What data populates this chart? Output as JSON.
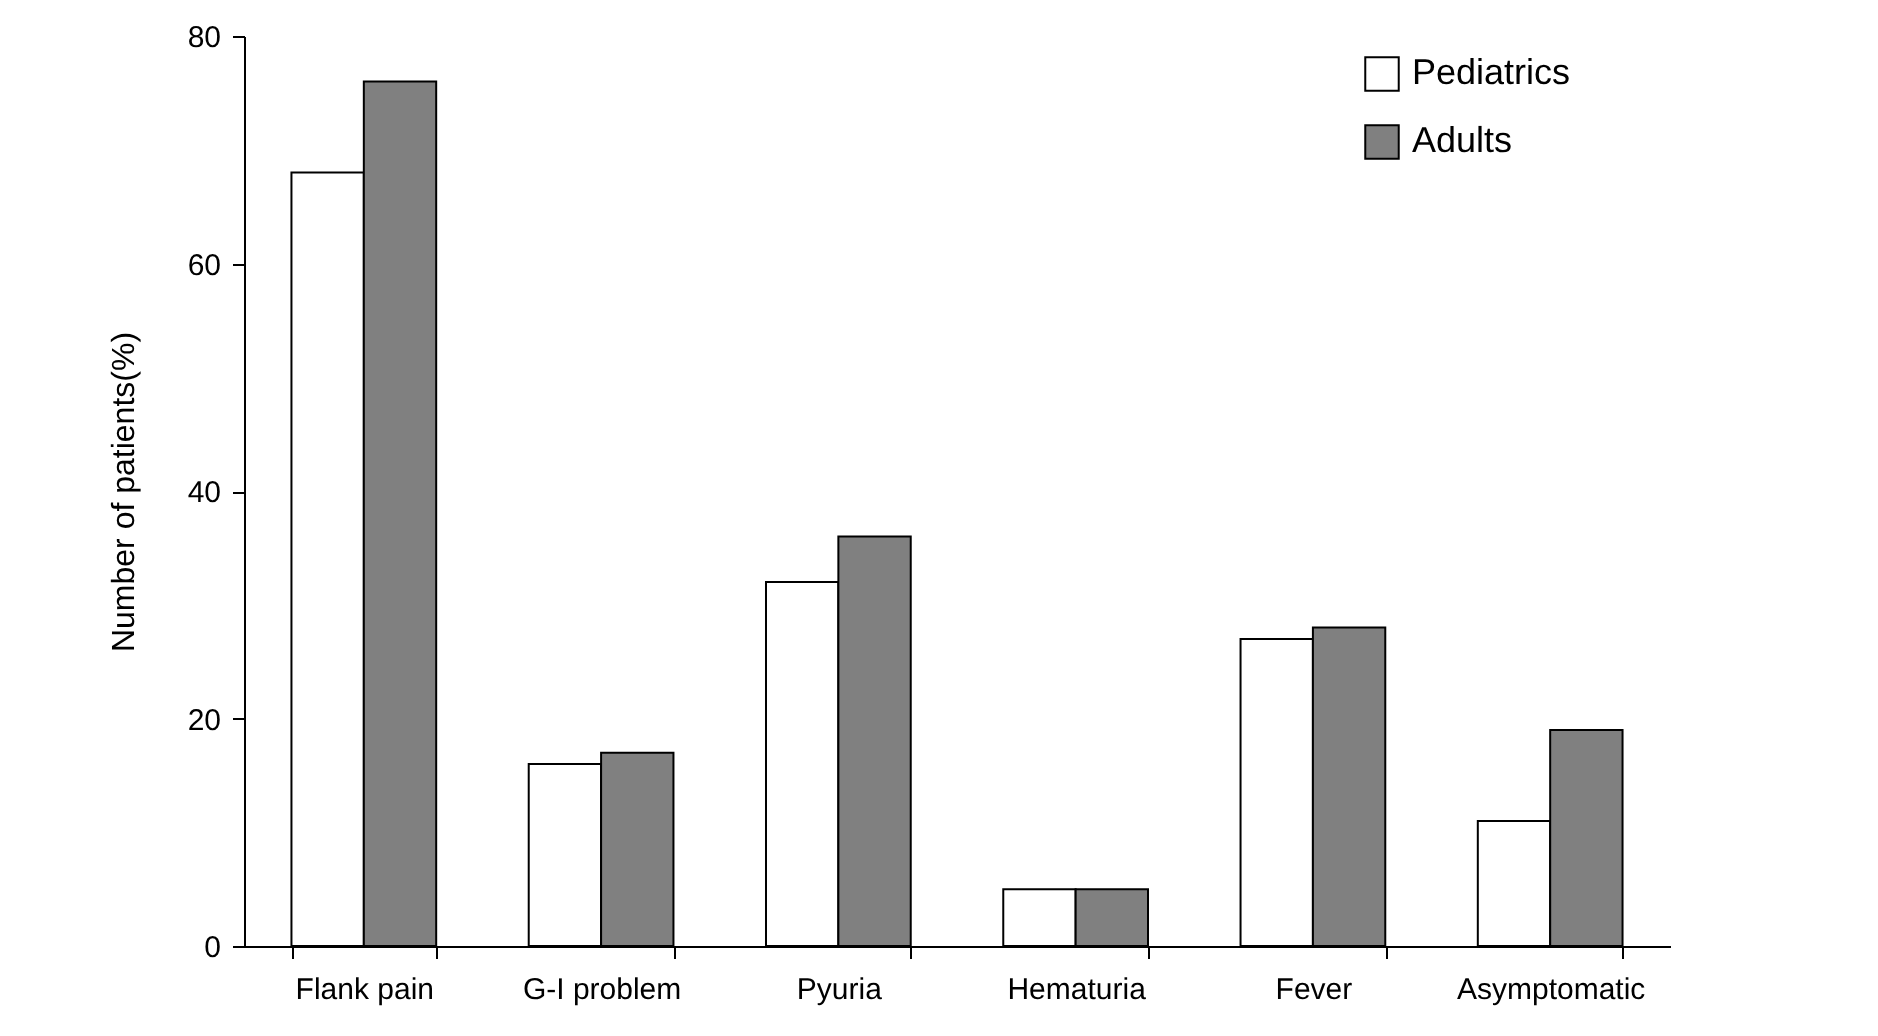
{
  "chart_data": {
    "type": "bar",
    "ylabel": "Number of patients(%)",
    "categories": [
      "Flank pain",
      "G-I problem",
      "Pyuria",
      "Hematuria",
      "Fever",
      "Asymptomatic"
    ],
    "series": [
      {
        "name": "Pediatrics",
        "color": "#ffffff",
        "values": [
          68,
          16,
          32,
          5,
          27,
          11
        ]
      },
      {
        "name": "Adults",
        "color": "#808080",
        "values": [
          76,
          17,
          36,
          5,
          28,
          19
        ]
      }
    ],
    "ylim": [
      0,
      80
    ],
    "yticks": [
      0,
      20,
      40,
      60,
      80
    ],
    "grid": false,
    "legend": "top right"
  }
}
